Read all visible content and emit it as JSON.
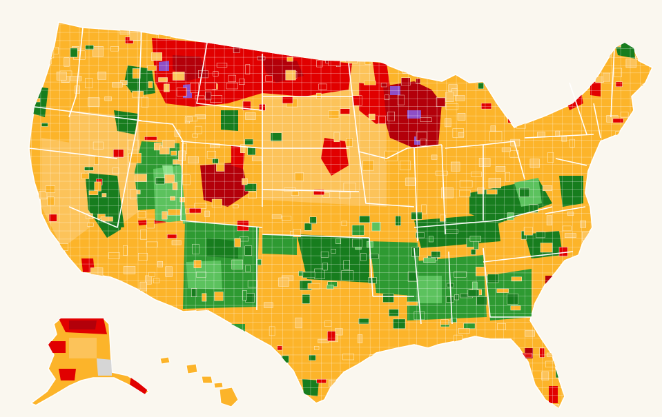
{
  "map": {
    "colors": {
      "background": "#faf7ef",
      "orange": "#fcb42a",
      "light_orange": "#fcc35a",
      "red": "#e10000",
      "dark_red": "#b3000a",
      "purple": "#8e4fc6",
      "dark_green": "#177d1e",
      "green": "#2e9a32",
      "light_green": "#5cc25e",
      "pale_green": "#8ce08a",
      "gray": "#d6d6d6",
      "border": "#ffffff"
    },
    "regions": [
      "lower-48-states",
      "alaska",
      "hawaii"
    ]
  }
}
